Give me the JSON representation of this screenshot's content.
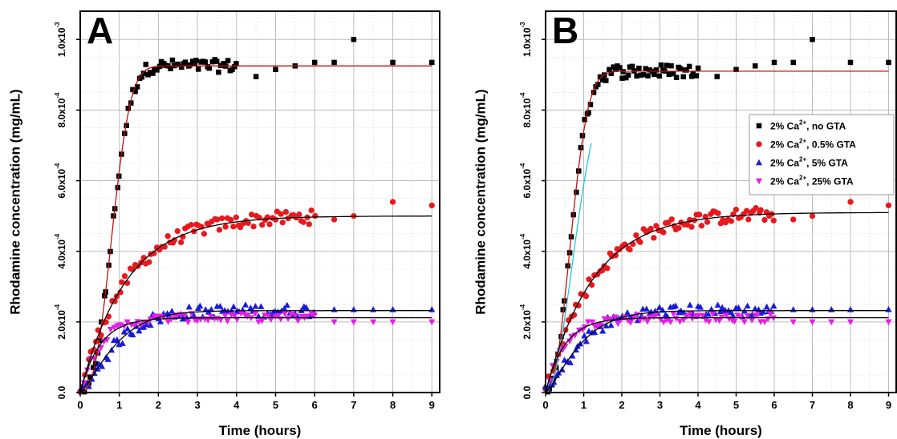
{
  "colors": {
    "no_gta": "#000000",
    "gta_05": "#e8191e",
    "gta_5": "#1a1adf",
    "gta_25": "#e51ee5",
    "fit_red": "#c01010",
    "fit_black": "#000000",
    "fit_cyan": "#22c8d8",
    "grid_major": "#bdbdbd",
    "grid_minor": "#e6e6e6"
  },
  "chart_data": [
    {
      "type": "scatter",
      "panel_label": "A",
      "xlabel": "Time (hours)",
      "ylabel": "Rhodamine concentration (mg/mL)",
      "xlim": [
        0,
        9.2
      ],
      "ylim": [
        0,
        1.08
      ],
      "x_ticks": [
        0,
        1,
        2,
        3,
        4,
        5,
        6,
        7,
        8,
        9
      ],
      "y_ticks": [
        {
          "value": 0,
          "mantissa": "0.0",
          "exp": ""
        },
        {
          "value": 0.2,
          "mantissa": "2.0x10",
          "exp": "-4"
        },
        {
          "value": 0.4,
          "mantissa": "4.0x10",
          "exp": "-4"
        },
        {
          "value": 0.6,
          "mantissa": "6.0x10",
          "exp": "-4"
        },
        {
          "value": 0.8,
          "mantissa": "8.0x10",
          "exp": "-4"
        },
        {
          "value": 1.0,
          "mantissa": "1.0x10",
          "exp": "-3"
        }
      ],
      "y_unit_multiplier": "1e-3",
      "grid": true,
      "series": [
        {
          "key": "no_gta",
          "marker": "square",
          "color_key": "no_gta",
          "fit_color_key": "fit_red",
          "fit": {
            "A": 0.925,
            "k": 1.05,
            "n": 2.6
          },
          "dense_range": [
            0.1,
            4.0
          ],
          "dense_count": 70,
          "noise": 0.018,
          "outliers": [
            [
              4.5,
              0.895
            ],
            [
              5.0,
              0.915
            ],
            [
              5.5,
              0.925
            ],
            [
              6.0,
              0.935
            ],
            [
              6.5,
              0.935
            ],
            [
              7.0,
              1.0
            ],
            [
              8.0,
              0.935
            ],
            [
              9.0,
              0.935
            ]
          ]
        },
        {
          "key": "gta_05",
          "marker": "circle",
          "color_key": "gta_05",
          "fit_color_key": "fit_black",
          "fit": {
            "A": 0.5,
            "k": 0.85,
            "n": 1.0
          },
          "dense_range": [
            0.0,
            6.0
          ],
          "dense_count": 90,
          "noise": 0.02,
          "outliers": [
            [
              6.5,
              0.49
            ],
            [
              7.0,
              0.5
            ],
            [
              8.0,
              0.54
            ],
            [
              9.0,
              0.53
            ]
          ]
        },
        {
          "key": "gta_5",
          "marker": "triangle-up",
          "color_key": "gta_5",
          "fit_color_key": "fit_black",
          "fit": {
            "A": 0.232,
            "k": 1.0,
            "n": 1.3
          },
          "dense_range": [
            0.0,
            6.0
          ],
          "dense_count": 85,
          "noise": 0.018,
          "outliers": [
            [
              6.5,
              0.235
            ],
            [
              7.0,
              0.235
            ],
            [
              7.5,
              0.235
            ],
            [
              8.0,
              0.235
            ],
            [
              9.0,
              0.235
            ]
          ]
        },
        {
          "key": "gta_25",
          "marker": "triangle-down",
          "color_key": "gta_25",
          "fit_color_key": "fit_black",
          "fit": {
            "A": 0.212,
            "k": 2.0,
            "n": 1.0
          },
          "dense_range": [
            0.1,
            6.0
          ],
          "dense_count": 70,
          "noise": 0.012,
          "outliers": [
            [
              6.5,
              0.2
            ],
            [
              7.0,
              0.2
            ],
            [
              7.5,
              0.2
            ],
            [
              8.0,
              0.2
            ],
            [
              9.0,
              0.2
            ]
          ]
        }
      ]
    },
    {
      "type": "scatter",
      "panel_label": "B",
      "xlabel": "Time (hours)",
      "ylabel": "Rhodamine concentration (mg/mL)",
      "xlim": [
        0,
        9.2
      ],
      "ylim": [
        0,
        1.08
      ],
      "x_ticks": [
        0,
        1,
        2,
        3,
        4,
        5,
        6,
        7,
        8,
        9
      ],
      "y_ticks": [
        {
          "value": 0,
          "mantissa": "0.0",
          "exp": ""
        },
        {
          "value": 0.2,
          "mantissa": "2.0x10",
          "exp": "-4"
        },
        {
          "value": 0.4,
          "mantissa": "4.0x10",
          "exp": "-4"
        },
        {
          "value": 0.6,
          "mantissa": "6.0x10",
          "exp": "-4"
        },
        {
          "value": 0.8,
          "mantissa": "8.0x10",
          "exp": "-4"
        },
        {
          "value": 1.0,
          "mantissa": "1.0x10",
          "exp": "-3"
        }
      ],
      "y_unit_multiplier": "1e-3",
      "grid": true,
      "legend_position": "right",
      "legend": [
        {
          "key": "no_gta",
          "marker": "square",
          "color_key": "no_gta",
          "pre": "2% Ca",
          "sup": "2+",
          "post": ", no GTA"
        },
        {
          "key": "gta_05",
          "marker": "circle",
          "color_key": "gta_05",
          "pre": "2% Ca",
          "sup": "2+",
          "post": ", 0.5% GTA"
        },
        {
          "key": "gta_5",
          "marker": "triangle-up",
          "color_key": "gta_5",
          "pre": "2% Ca",
          "sup": "2+",
          "post": ", 5% GTA"
        },
        {
          "key": "gta_25",
          "marker": "triangle-down",
          "color_key": "gta_25",
          "pre": "2% Ca",
          "sup": "2+",
          "post": ", 25% GTA"
        }
      ],
      "series": [
        {
          "key": "no_gta",
          "marker": "square",
          "color_key": "no_gta",
          "fit_color_key": "fit_red",
          "fit": {
            "A": 0.91,
            "k": 1.25,
            "n": 2.3
          },
          "extra_fit": {
            "color_key": "fit_cyan",
            "A": 0.91,
            "k": 1.02,
            "n": 2.0,
            "x_max": 1.2
          },
          "dense_range": [
            0.05,
            4.0
          ],
          "dense_count": 70,
          "noise": 0.02,
          "outliers": [
            [
              4.5,
              0.895
            ],
            [
              5.0,
              0.915
            ],
            [
              5.5,
              0.925
            ],
            [
              6.0,
              0.935
            ],
            [
              6.5,
              0.935
            ],
            [
              7.0,
              1.0
            ],
            [
              8.0,
              0.935
            ],
            [
              9.0,
              0.935
            ]
          ]
        },
        {
          "key": "gta_05",
          "marker": "circle",
          "color_key": "gta_05",
          "fit_color_key": "fit_black",
          "fit": {
            "A": 0.51,
            "k": 0.8,
            "n": 1.0
          },
          "dense_range": [
            0.0,
            6.0
          ],
          "dense_count": 90,
          "noise": 0.02,
          "outliers": [
            [
              6.5,
              0.49
            ],
            [
              7.0,
              0.5
            ],
            [
              8.0,
              0.54
            ],
            [
              9.0,
              0.53
            ]
          ]
        },
        {
          "key": "gta_5",
          "marker": "triangle-up",
          "color_key": "gta_5",
          "fit_color_key": "fit_black",
          "fit": {
            "A": 0.232,
            "k": 1.0,
            "n": 1.3
          },
          "dense_range": [
            0.0,
            6.0
          ],
          "dense_count": 85,
          "noise": 0.018,
          "outliers": [
            [
              6.5,
              0.235
            ],
            [
              7.0,
              0.235
            ],
            [
              7.5,
              0.235
            ],
            [
              8.0,
              0.235
            ],
            [
              9.0,
              0.235
            ]
          ]
        },
        {
          "key": "gta_25",
          "marker": "triangle-down",
          "color_key": "gta_25",
          "fit_color_key": "fit_black",
          "fit": {
            "A": 0.212,
            "k": 2.0,
            "n": 1.0
          },
          "dense_range": [
            0.1,
            6.0
          ],
          "dense_count": 70,
          "noise": 0.012,
          "outliers": [
            [
              6.5,
              0.2
            ],
            [
              7.0,
              0.2
            ],
            [
              7.5,
              0.2
            ],
            [
              8.0,
              0.2
            ],
            [
              9.0,
              0.2
            ]
          ]
        }
      ]
    }
  ]
}
